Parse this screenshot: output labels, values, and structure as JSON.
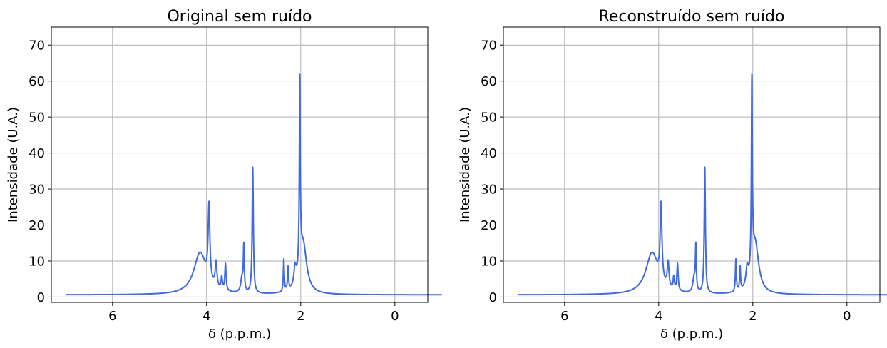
{
  "chart_data": [
    {
      "type": "line",
      "title": "Original sem ruído",
      "xlabel": "δ (p.p.m.)",
      "ylabel": "Intensidade (U.A.)",
      "xlim": [
        7.3,
        -0.7
      ],
      "ylim": [
        -1.5,
        75
      ],
      "x_reversed": true,
      "grid": true,
      "xticks": [
        6,
        4,
        2,
        0
      ],
      "yticks": [
        0,
        10,
        20,
        30,
        40,
        50,
        60,
        70
      ],
      "x_range": [
        7,
        -1
      ],
      "baseline": 0.6,
      "series": [
        {
          "color": "#4169e1",
          "peaks": [
            {
              "center": 4.14,
              "height": 11.5,
              "width": 0.16
            },
            {
              "center": 3.95,
              "height": 21.0,
              "width": 0.022
            },
            {
              "center": 3.8,
              "height": 7.0,
              "width": 0.022
            },
            {
              "center": 3.68,
              "height": 3.5,
              "width": 0.015
            },
            {
              "center": 3.6,
              "height": 7.5,
              "width": 0.016
            },
            {
              "center": 3.21,
              "height": 12.5,
              "width": 0.012
            },
            {
              "center": 3.25,
              "height": 4.0,
              "width": 0.03
            },
            {
              "center": 3.02,
              "height": 35.0,
              "width": 0.015
            },
            {
              "center": 2.36,
              "height": 9.0,
              "width": 0.012
            },
            {
              "center": 2.27,
              "height": 6.5,
              "width": 0.012
            },
            {
              "center": 2.12,
              "height": 5.0,
              "width": 0.03
            },
            {
              "center": 2.02,
              "height": 52.0,
              "width": 0.012
            },
            {
              "center": 1.95,
              "height": 14.0,
              "width": 0.09
            }
          ]
        }
      ]
    },
    {
      "type": "line",
      "title": "Reconstruído sem ruído",
      "xlabel": "δ (p.p.m.)",
      "ylabel": "Intensidade (U.A.)",
      "xlim": [
        7.3,
        -0.7
      ],
      "ylim": [
        -1.5,
        75
      ],
      "x_reversed": true,
      "grid": true,
      "xticks": [
        6,
        4,
        2,
        0
      ],
      "yticks": [
        0,
        10,
        20,
        30,
        40,
        50,
        60,
        70
      ],
      "x_range": [
        7,
        -1
      ],
      "baseline": 0.6,
      "series": [
        {
          "color": "#4169e1",
          "peaks": [
            {
              "center": 4.14,
              "height": 11.5,
              "width": 0.16
            },
            {
              "center": 3.95,
              "height": 21.0,
              "width": 0.022
            },
            {
              "center": 3.8,
              "height": 7.0,
              "width": 0.022
            },
            {
              "center": 3.68,
              "height": 3.5,
              "width": 0.015
            },
            {
              "center": 3.6,
              "height": 7.5,
              "width": 0.016
            },
            {
              "center": 3.21,
              "height": 12.5,
              "width": 0.012
            },
            {
              "center": 3.25,
              "height": 4.0,
              "width": 0.03
            },
            {
              "center": 3.02,
              "height": 35.0,
              "width": 0.015
            },
            {
              "center": 2.36,
              "height": 9.0,
              "width": 0.012
            },
            {
              "center": 2.27,
              "height": 6.5,
              "width": 0.012
            },
            {
              "center": 2.12,
              "height": 5.0,
              "width": 0.03
            },
            {
              "center": 2.02,
              "height": 52.0,
              "width": 0.012
            },
            {
              "center": 1.95,
              "height": 14.0,
              "width": 0.09
            }
          ]
        }
      ]
    }
  ]
}
